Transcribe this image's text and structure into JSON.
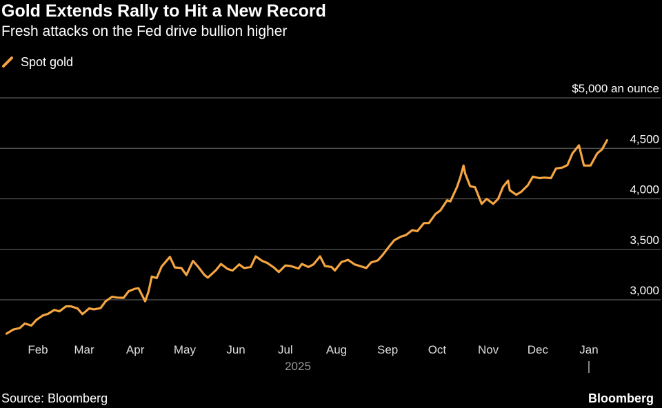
{
  "header": {
    "title": "Gold Extends Rally to Hit a New Record",
    "subtitle": "Fresh attacks on the Fed drive bullion higher"
  },
  "legend": {
    "label": "Spot gold"
  },
  "footer": {
    "source": "Source: Bloomberg",
    "brand": "Bloomberg"
  },
  "colors": {
    "background": "#000000",
    "line": "#f5a642",
    "grid": "#5a5a5a",
    "text": "#ffffff",
    "axis_text": "#dddddd",
    "year_text": "#9a9a9a"
  },
  "chart_data": {
    "type": "line",
    "title": "Gold Extends Rally to Hit a New Record",
    "subtitle": "Fresh attacks on the Fed drive bullion higher",
    "xlabel": "2025",
    "ylabel": "$5,000 an ounce",
    "ylim": [
      2600,
      5000
    ],
    "yticks": [
      3000,
      3500,
      4000,
      4500,
      5000
    ],
    "ytick_labels": [
      "3,000",
      "3,500",
      "4,000",
      "4,500",
      "$5,000 an ounce"
    ],
    "xticks": [
      {
        "date": "2025-02-01",
        "label": "Feb"
      },
      {
        "date": "2025-03-01",
        "label": "Mar"
      },
      {
        "date": "2025-04-01",
        "label": "Apr"
      },
      {
        "date": "2025-05-01",
        "label": "May"
      },
      {
        "date": "2025-06-01",
        "label": "Jun"
      },
      {
        "date": "2025-07-01",
        "label": "Jul"
      },
      {
        "date": "2025-08-01",
        "label": "Aug"
      },
      {
        "date": "2025-09-01",
        "label": "Sep"
      },
      {
        "date": "2025-10-01",
        "label": "Oct"
      },
      {
        "date": "2025-11-01",
        "label": "Nov"
      },
      {
        "date": "2025-12-01",
        "label": "Dec"
      },
      {
        "date": "2026-01-01",
        "label": "Jan"
      }
    ],
    "grid": true,
    "legend_position": "top-left",
    "series": [
      {
        "name": "Spot gold",
        "color": "#f5a642",
        "points": [
          [
            "2025-01-13",
            2665
          ],
          [
            "2025-01-17",
            2705
          ],
          [
            "2025-01-21",
            2720
          ],
          [
            "2025-01-24",
            2765
          ],
          [
            "2025-01-28",
            2745
          ],
          [
            "2025-01-31",
            2800
          ],
          [
            "2025-02-04",
            2845
          ],
          [
            "2025-02-07",
            2860
          ],
          [
            "2025-02-11",
            2900
          ],
          [
            "2025-02-14",
            2885
          ],
          [
            "2025-02-18",
            2935
          ],
          [
            "2025-02-21",
            2935
          ],
          [
            "2025-02-25",
            2915
          ],
          [
            "2025-02-28",
            2858
          ],
          [
            "2025-03-04",
            2915
          ],
          [
            "2025-03-07",
            2905
          ],
          [
            "2025-03-11",
            2918
          ],
          [
            "2025-03-14",
            2985
          ],
          [
            "2025-03-18",
            3030
          ],
          [
            "2025-03-21",
            3022
          ],
          [
            "2025-03-25",
            3020
          ],
          [
            "2025-03-28",
            3085
          ],
          [
            "2025-04-01",
            3110
          ],
          [
            "2025-04-03",
            3115
          ],
          [
            "2025-04-07",
            2985
          ],
          [
            "2025-04-09",
            3080
          ],
          [
            "2025-04-11",
            3230
          ],
          [
            "2025-04-14",
            3215
          ],
          [
            "2025-04-17",
            3330
          ],
          [
            "2025-04-22",
            3425
          ],
          [
            "2025-04-25",
            3320
          ],
          [
            "2025-04-29",
            3315
          ],
          [
            "2025-05-02",
            3245
          ],
          [
            "2025-05-06",
            3385
          ],
          [
            "2025-05-09",
            3330
          ],
          [
            "2025-05-13",
            3245
          ],
          [
            "2025-05-15",
            3220
          ],
          [
            "2025-05-20",
            3295
          ],
          [
            "2025-05-23",
            3355
          ],
          [
            "2025-05-27",
            3305
          ],
          [
            "2025-05-30",
            3290
          ],
          [
            "2025-06-03",
            3350
          ],
          [
            "2025-06-06",
            3315
          ],
          [
            "2025-06-10",
            3325
          ],
          [
            "2025-06-13",
            3430
          ],
          [
            "2025-06-17",
            3385
          ],
          [
            "2025-06-20",
            3365
          ],
          [
            "2025-06-24",
            3320
          ],
          [
            "2025-06-27",
            3275
          ],
          [
            "2025-07-01",
            3340
          ],
          [
            "2025-07-04",
            3335
          ],
          [
            "2025-07-09",
            3310
          ],
          [
            "2025-07-11",
            3355
          ],
          [
            "2025-07-15",
            3325
          ],
          [
            "2025-07-18",
            3350
          ],
          [
            "2025-07-22",
            3430
          ],
          [
            "2025-07-25",
            3335
          ],
          [
            "2025-07-29",
            3325
          ],
          [
            "2025-07-31",
            3290
          ],
          [
            "2025-08-04",
            3375
          ],
          [
            "2025-08-08",
            3395
          ],
          [
            "2025-08-12",
            3350
          ],
          [
            "2025-08-15",
            3335
          ],
          [
            "2025-08-19",
            3315
          ],
          [
            "2025-08-22",
            3370
          ],
          [
            "2025-08-26",
            3390
          ],
          [
            "2025-08-29",
            3445
          ],
          [
            "2025-09-02",
            3530
          ],
          [
            "2025-09-05",
            3590
          ],
          [
            "2025-09-09",
            3625
          ],
          [
            "2025-09-12",
            3640
          ],
          [
            "2025-09-16",
            3690
          ],
          [
            "2025-09-19",
            3680
          ],
          [
            "2025-09-23",
            3760
          ],
          [
            "2025-09-26",
            3760
          ],
          [
            "2025-09-30",
            3850
          ],
          [
            "2025-10-03",
            3885
          ],
          [
            "2025-10-07",
            3985
          ],
          [
            "2025-10-09",
            3975
          ],
          [
            "2025-10-13",
            4115
          ],
          [
            "2025-10-15",
            4210
          ],
          [
            "2025-10-17",
            4330
          ],
          [
            "2025-10-18",
            4250
          ],
          [
            "2025-10-21",
            4125
          ],
          [
            "2025-10-24",
            4115
          ],
          [
            "2025-10-28",
            3950
          ],
          [
            "2025-10-31",
            4000
          ],
          [
            "2025-11-04",
            3950
          ],
          [
            "2025-11-07",
            4000
          ],
          [
            "2025-11-10",
            4120
          ],
          [
            "2025-11-13",
            4180
          ],
          [
            "2025-11-14",
            4085
          ],
          [
            "2025-11-18",
            4040
          ],
          [
            "2025-11-21",
            4070
          ],
          [
            "2025-11-25",
            4135
          ],
          [
            "2025-11-28",
            4220
          ],
          [
            "2025-12-02",
            4205
          ],
          [
            "2025-12-05",
            4210
          ],
          [
            "2025-12-09",
            4205
          ],
          [
            "2025-12-12",
            4300
          ],
          [
            "2025-12-16",
            4310
          ],
          [
            "2025-12-19",
            4335
          ],
          [
            "2025-12-22",
            4450
          ],
          [
            "2025-12-26",
            4530
          ],
          [
            "2025-12-29",
            4330
          ],
          [
            "2026-01-02",
            4330
          ],
          [
            "2026-01-06",
            4450
          ],
          [
            "2026-01-09",
            4490
          ],
          [
            "2026-01-12",
            4580
          ]
        ]
      }
    ]
  }
}
